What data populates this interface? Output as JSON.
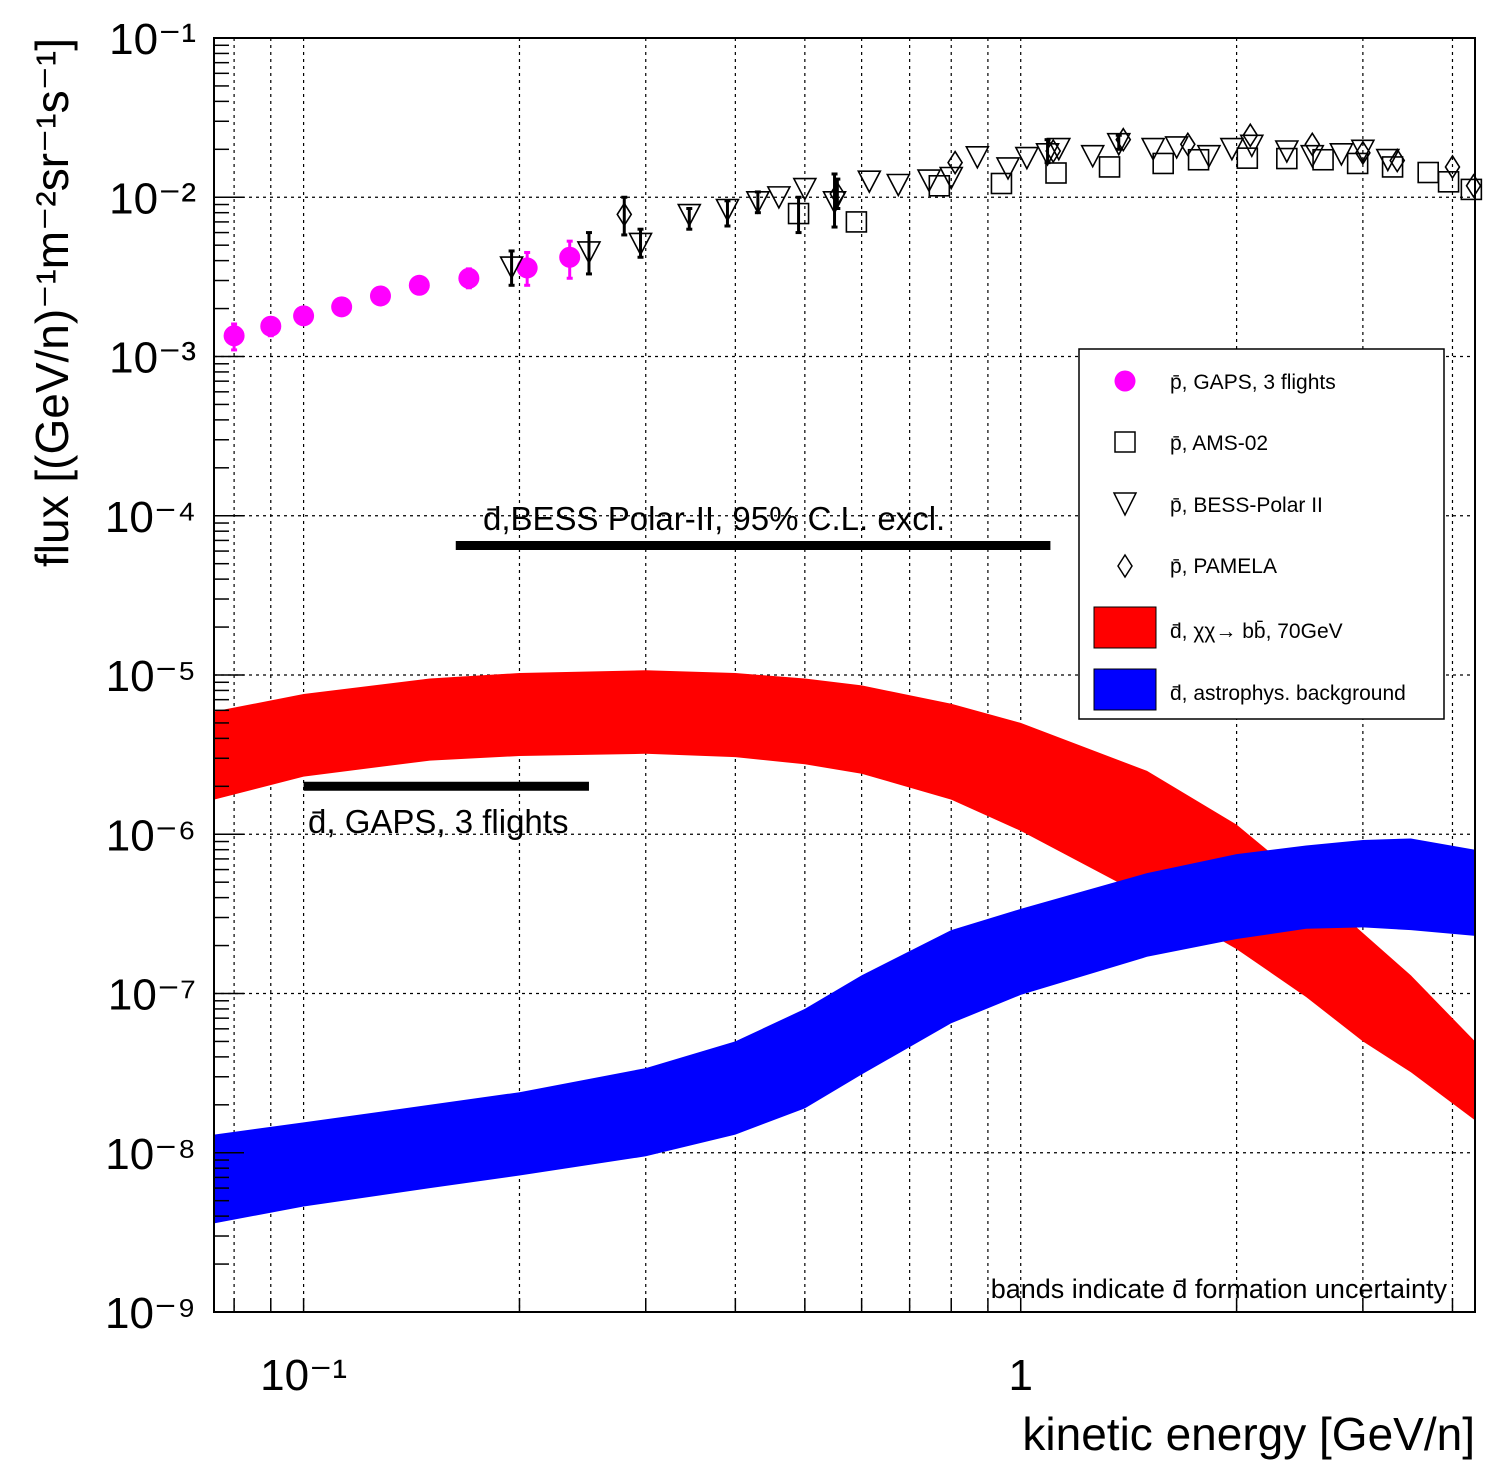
{
  "chart_data": {
    "type": "scatter",
    "title": "",
    "xlabel": "kinetic energy [GeV/n]",
    "ylabel": "flux [(GeV/n)⁻¹m⁻²sr⁻¹s⁻¹]",
    "xscale": "log",
    "yscale": "log",
    "xlim": [
      0.075,
      4.3
    ],
    "ylim": [
      1e-09,
      0.1
    ],
    "grid": true,
    "x_ticks": [
      {
        "value": 0.1,
        "label": "10⁻¹"
      },
      {
        "value": 1,
        "label": "1"
      }
    ],
    "y_ticks": [
      {
        "value": 1e-09,
        "label": "10⁻⁹"
      },
      {
        "value": 1e-08,
        "label": "10⁻⁸"
      },
      {
        "value": 1e-07,
        "label": "10⁻⁷"
      },
      {
        "value": 1e-06,
        "label": "10⁻⁶"
      },
      {
        "value": 1e-05,
        "label": "10⁻⁵"
      },
      {
        "value": 0.0001,
        "label": "10⁻⁴"
      },
      {
        "value": 0.001,
        "label": "10⁻³"
      },
      {
        "value": 0.01,
        "label": "10⁻²"
      },
      {
        "value": 0.1,
        "label": "10⁻¹"
      }
    ],
    "legend_position": "top-right",
    "series": [
      {
        "name": "p̄, GAPS, 3 flights",
        "marker": "circle",
        "color": "#ff00ff",
        "points": [
          {
            "x": 0.08,
            "y": 0.00135,
            "ylo": 0.0011,
            "yhi": 0.0016
          },
          {
            "x": 0.09,
            "y": 0.00155,
            "ylo": 0.00135,
            "yhi": 0.00175
          },
          {
            "x": 0.1,
            "y": 0.0018,
            "ylo": 0.00165,
            "yhi": 0.00195
          },
          {
            "x": 0.113,
            "y": 0.00205
          },
          {
            "x": 0.128,
            "y": 0.0024
          },
          {
            "x": 0.145,
            "y": 0.0028
          },
          {
            "x": 0.17,
            "y": 0.0031,
            "ylo": 0.0027,
            "yhi": 0.00355
          },
          {
            "x": 0.205,
            "y": 0.0036,
            "ylo": 0.0028,
            "yhi": 0.0045
          },
          {
            "x": 0.235,
            "y": 0.0042,
            "ylo": 0.0031,
            "yhi": 0.0053
          }
        ]
      },
      {
        "name": "p̄, AMS-02",
        "marker": "square",
        "color": "#000000",
        "points": [
          {
            "x": 0.49,
            "y": 0.0079,
            "ylo": 0.006,
            "yhi": 0.01
          },
          {
            "x": 0.59,
            "y": 0.007
          },
          {
            "x": 0.77,
            "y": 0.0118
          },
          {
            "x": 0.94,
            "y": 0.0122
          },
          {
            "x": 1.12,
            "y": 0.0142
          },
          {
            "x": 1.33,
            "y": 0.0155
          },
          {
            "x": 1.58,
            "y": 0.0163
          },
          {
            "x": 1.77,
            "y": 0.0172
          },
          {
            "x": 2.07,
            "y": 0.0176
          },
          {
            "x": 2.35,
            "y": 0.0175
          },
          {
            "x": 2.64,
            "y": 0.0172
          },
          {
            "x": 2.95,
            "y": 0.0163
          },
          {
            "x": 3.3,
            "y": 0.0155
          },
          {
            "x": 3.7,
            "y": 0.0143
          },
          {
            "x": 3.95,
            "y": 0.0125
          },
          {
            "x": 4.25,
            "y": 0.0112
          }
        ]
      },
      {
        "name": "p̄, BESS-Polar II",
        "marker": "triangle-down",
        "color": "#000000",
        "points": [
          {
            "x": 0.195,
            "y": 0.0037,
            "ylo": 0.0028,
            "yhi": 0.0046
          },
          {
            "x": 0.25,
            "y": 0.0046,
            "ylo": 0.0033,
            "yhi": 0.006
          },
          {
            "x": 0.295,
            "y": 0.0052,
            "ylo": 0.0042,
            "yhi": 0.0063
          },
          {
            "x": 0.345,
            "y": 0.0079,
            "ylo": 0.0063,
            "yhi": 0.0085
          },
          {
            "x": 0.39,
            "y": 0.0085,
            "ylo": 0.0066,
            "yhi": 0.0095
          },
          {
            "x": 0.43,
            "y": 0.0095,
            "ylo": 0.008,
            "yhi": 0.0108
          },
          {
            "x": 0.46,
            "y": 0.0102
          },
          {
            "x": 0.5,
            "y": 0.0115
          },
          {
            "x": 0.55,
            "y": 0.0095,
            "ylo": 0.0065,
            "yhi": 0.014
          },
          {
            "x": 0.615,
            "y": 0.0128
          },
          {
            "x": 0.675,
            "y": 0.0122
          },
          {
            "x": 0.745,
            "y": 0.013
          },
          {
            "x": 0.8,
            "y": 0.0135
          },
          {
            "x": 0.87,
            "y": 0.0182
          },
          {
            "x": 0.96,
            "y": 0.0155
          },
          {
            "x": 1.02,
            "y": 0.018
          },
          {
            "x": 1.09,
            "y": 0.019,
            "ylo": 0.0165,
            "yhi": 0.023
          },
          {
            "x": 1.13,
            "y": 0.0205
          },
          {
            "x": 1.26,
            "y": 0.0185
          },
          {
            "x": 1.37,
            "y": 0.022,
            "ylo": 0.02,
            "yhi": 0.0245
          },
          {
            "x": 1.53,
            "y": 0.0205
          },
          {
            "x": 1.65,
            "y": 0.021
          },
          {
            "x": 1.83,
            "y": 0.0185
          },
          {
            "x": 1.97,
            "y": 0.0205
          },
          {
            "x": 2.1,
            "y": 0.0215
          },
          {
            "x": 2.35,
            "y": 0.0198
          },
          {
            "x": 2.55,
            "y": 0.0185
          },
          {
            "x": 2.8,
            "y": 0.019
          },
          {
            "x": 3.0,
            "y": 0.02
          },
          {
            "x": 3.25,
            "y": 0.0175
          }
        ]
      },
      {
        "name": "p̄, PAMELA",
        "marker": "diamond",
        "color": "#000000",
        "points": [
          {
            "x": 0.28,
            "y": 0.0078,
            "ylo": 0.0058,
            "yhi": 0.01
          },
          {
            "x": 0.555,
            "y": 0.0105,
            "ylo": 0.0085,
            "yhi": 0.013
          },
          {
            "x": 0.81,
            "y": 0.0165
          },
          {
            "x": 1.11,
            "y": 0.0195
          },
          {
            "x": 1.39,
            "y": 0.023
          },
          {
            "x": 1.71,
            "y": 0.0215
          },
          {
            "x": 2.09,
            "y": 0.0245
          },
          {
            "x": 2.55,
            "y": 0.0215
          },
          {
            "x": 3.0,
            "y": 0.019
          },
          {
            "x": 3.35,
            "y": 0.017
          },
          {
            "x": 4.0,
            "y": 0.0155
          },
          {
            "x": 4.28,
            "y": 0.0118
          }
        ]
      }
    ],
    "bands": [
      {
        "name": "d̄, χχ→ bb̄, 70GeV",
        "color": "#ff0000",
        "x": [
          0.075,
          0.1,
          0.15,
          0.2,
          0.3,
          0.4,
          0.5,
          0.6,
          0.8,
          1.0,
          1.5,
          2.0,
          2.5,
          3.0,
          3.5,
          4.3
        ],
        "upper": [
          5.9e-06,
          7.6e-06,
          9.5e-06,
          1.03e-05,
          1.07e-05,
          1.03e-05,
          9.5e-06,
          8.6e-06,
          6.6e-06,
          5e-06,
          2.5e-06,
          1.15e-06,
          5e-07,
          2.4e-07,
          1.3e-07,
          5e-08
        ],
        "lower": [
          1.65e-06,
          2.3e-06,
          2.9e-06,
          3.1e-06,
          3.2e-06,
          3.05e-06,
          2.75e-06,
          2.4e-06,
          1.65e-06,
          1.05e-06,
          4e-07,
          1.9e-07,
          9.5e-08,
          5e-08,
          3.2e-08,
          1.6e-08
        ]
      },
      {
        "name": "d̄, astrophys. background",
        "color": "#0000ff",
        "x": [
          0.075,
          0.1,
          0.15,
          0.2,
          0.3,
          0.4,
          0.5,
          0.6,
          0.8,
          1.0,
          1.5,
          2.0,
          2.5,
          3.0,
          3.5,
          4.3
        ],
        "upper": [
          1.3e-08,
          1.55e-08,
          2e-08,
          2.4e-08,
          3.4e-08,
          5e-08,
          8e-08,
          1.3e-07,
          2.5e-07,
          3.4e-07,
          5.7e-07,
          7.5e-07,
          8.5e-07,
          9.2e-07,
          9.4e-07,
          8e-07
        ],
        "lower": [
          3.6e-09,
          4.6e-09,
          6e-09,
          7.2e-09,
          9.5e-09,
          1.3e-08,
          1.9e-08,
          3.1e-08,
          6.5e-08,
          9.8e-08,
          1.7e-07,
          2.2e-07,
          2.55e-07,
          2.6e-07,
          2.5e-07,
          2.3e-07
        ]
      }
    ],
    "limits": [
      {
        "label": "d̄,BESS Polar-II, 95% C.L. excl.",
        "x_range": [
          0.163,
          1.1
        ],
        "y": 6.5e-05
      },
      {
        "label": "d̄, GAPS, 3 flights",
        "x_range": [
          0.1,
          0.25
        ],
        "y": 2e-06
      }
    ],
    "annotations": [
      "bands indicate d̄ formation uncertainty"
    ]
  }
}
